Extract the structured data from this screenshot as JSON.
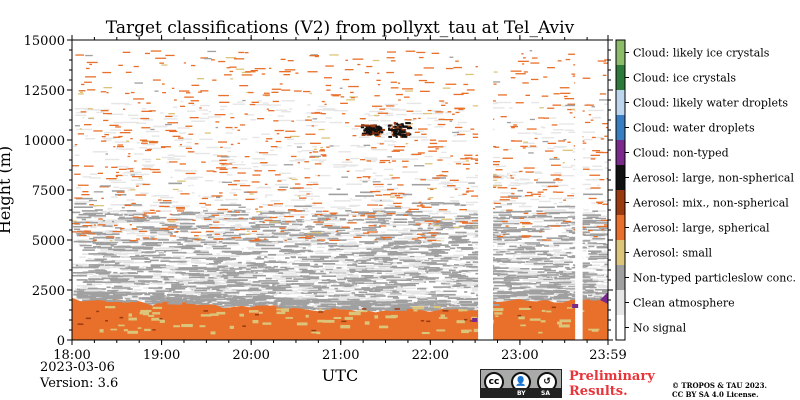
{
  "chart_data": {
    "type": "heatmap",
    "title": "Target classifications (V2) from pollyxt_tau at Tel_Aviv",
    "xlabel": "UTC",
    "ylabel": "Height (m)",
    "xlim": [
      "18:00",
      "23:59"
    ],
    "ylim": [
      0,
      15000
    ],
    "x_ticks": [
      "18:00",
      "19:00",
      "20:00",
      "21:00",
      "22:00",
      "23:00",
      "23:59"
    ],
    "y_ticks": [
      0,
      2500,
      5000,
      7500,
      10000,
      12500,
      15000
    ],
    "classes": [
      {
        "name": "No signal",
        "color": "#ffffff"
      },
      {
        "name": "Clean atmosphere",
        "color": "#e6e6e6"
      },
      {
        "name": "Non-typed particleslow conc.",
        "color": "#a0a0a0"
      },
      {
        "name": "Aerosol: small",
        "color": "#dcc47a"
      },
      {
        "name": "Aerosol: large, spherical",
        "color": "#e8702a"
      },
      {
        "name": "Aerosol: mix., non-spherical",
        "color": "#9a3a10"
      },
      {
        "name": "Aerosol: large, non-spherical",
        "color": "#111111"
      },
      {
        "name": "Cloud: non-typed",
        "color": "#7a2a8a"
      },
      {
        "name": "Cloud: water droplets",
        "color": "#3a7ec2"
      },
      {
        "name": "Cloud: likely water droplets",
        "color": "#bcd6ee"
      },
      {
        "name": "Cloud: ice crystals",
        "color": "#2e7a3a"
      },
      {
        "name": "Cloud: likely ice crystals",
        "color": "#8cbc6a"
      }
    ],
    "layers": {
      "boundary_layer_top_m": [
        2000,
        1300
      ],
      "grey_band_m": [
        1500,
        6500
      ],
      "scattered_aerosol_max_m": 14500,
      "ice_cloud_blobs": [
        {
          "time": "21:20",
          "height_m": [
            10300,
            10800
          ]
        },
        {
          "time": "21:38",
          "height_m": [
            10200,
            10900
          ]
        }
      ],
      "no_signal_gaps": [
        {
          "from": "22:32",
          "to": "22:42"
        },
        {
          "from": "23:37",
          "to": "23:42"
        }
      ]
    },
    "grid": false,
    "legend": "right colorbar"
  },
  "footer": {
    "date": "2023-03-06",
    "version": "Version: 3.6",
    "preliminary": [
      "Preliminary",
      "Results."
    ],
    "copyright": [
      "© TROPOS & TAU 2023.",
      "CC BY SA 4.0 License."
    ],
    "cc_badge": {
      "left": "cc",
      "by": "BY",
      "sa": "SA"
    }
  }
}
